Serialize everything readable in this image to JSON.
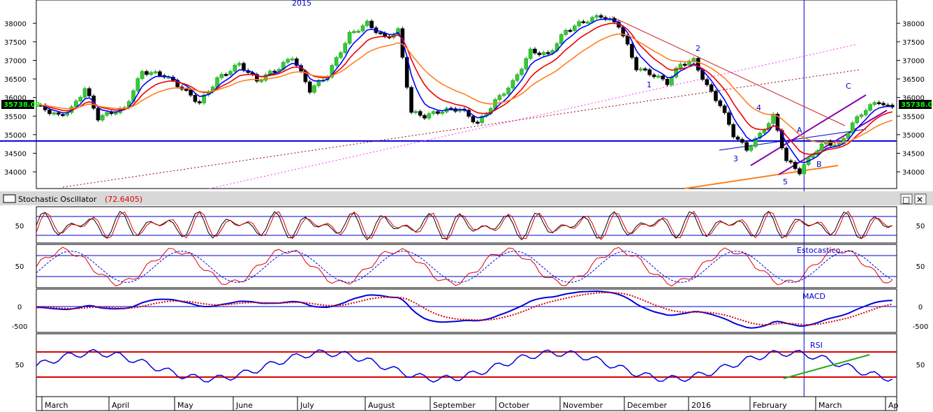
{
  "colors": {
    "price_up": "#33cc33",
    "price_down": "#000000",
    "ema_fast": "#0000ff",
    "ema_mid": "#ee0000",
    "ema_slow": "#ff7f1f",
    "label_blue": "#0000cc",
    "grid": "#0000cc",
    "green_trend": "#22aa22",
    "magenta": "#ff33ff",
    "purple": "#8800aa",
    "dark_red": "#990000",
    "rsi_band": "#dd0000",
    "price_tag_bg": "#000000",
    "price_tag_fg": "#00ff00",
    "panel_bar_bg": "#d8d8d8"
  },
  "top_label": "2015",
  "price_tag": "35738.00",
  "wave_labels": [
    "1",
    "2",
    "3",
    "4",
    "5",
    "A",
    "B",
    "C"
  ],
  "stochastic_panel": {
    "title": "Stochastic Oscillator",
    "value": "(72.6405)",
    "btn_restore": "□",
    "btn_close": "✕"
  },
  "panel_labels": {
    "estocastico": "Estocastico",
    "macd": "MACD",
    "rsi": "RSI"
  },
  "chart_data": [
    {
      "type": "line",
      "name": "price",
      "y_ticks": [
        34000,
        34500,
        35000,
        35500,
        36000,
        36500,
        37000,
        37500,
        38000
      ],
      "y_tick_labels": [
        "34000",
        "34500",
        "35000",
        "35500",
        "36000",
        "36500",
        "37000",
        "37500",
        "38000"
      ],
      "ylim": [
        33550,
        38550
      ],
      "horizontal_line": 34830,
      "x_months": [
        "March",
        "April",
        "May",
        "June",
        "July",
        "August",
        "September",
        "October",
        "November",
        "December",
        "2016",
        "February",
        "March",
        "Ap"
      ],
      "price_path": [
        [
          0,
          35800
        ],
        [
          5,
          35500
        ],
        [
          8,
          35700
        ],
        [
          11,
          36250
        ],
        [
          14,
          35450
        ],
        [
          17,
          35600
        ],
        [
          20,
          35700
        ],
        [
          24,
          36700
        ],
        [
          29,
          36600
        ],
        [
          33,
          36250
        ],
        [
          37,
          35850
        ],
        [
          41,
          36500
        ],
        [
          46,
          36900
        ],
        [
          50,
          36450
        ],
        [
          55,
          36800
        ],
        [
          58,
          37100
        ],
        [
          62,
          36200
        ],
        [
          66,
          36600
        ],
        [
          71,
          37700
        ],
        [
          75,
          38000
        ],
        [
          79,
          37600
        ],
        [
          82,
          37800
        ],
        [
          85,
          35600
        ],
        [
          88,
          35500
        ],
        [
          92,
          35650
        ],
        [
          96,
          35700
        ],
        [
          100,
          35300
        ],
        [
          104,
          35900
        ],
        [
          108,
          36400
        ],
        [
          112,
          37250
        ],
        [
          116,
          37150
        ],
        [
          120,
          37800
        ],
        [
          124,
          38050
        ],
        [
          128,
          38200
        ],
        [
          132,
          37950
        ],
        [
          136,
          36800
        ],
        [
          140,
          36600
        ],
        [
          143,
          36400
        ],
        [
          146,
          36900
        ],
        [
          149,
          37000
        ],
        [
          152,
          36300
        ],
        [
          155,
          35800
        ],
        [
          158,
          35000
        ],
        [
          161,
          34600
        ],
        [
          164,
          35000
        ],
        [
          167,
          35500
        ],
        [
          170,
          34300
        ],
        [
          173,
          34000
        ],
        [
          176,
          34500
        ],
        [
          179,
          34800
        ],
        [
          182,
          34700
        ],
        [
          185,
          35300
        ],
        [
          188,
          35700
        ],
        [
          191,
          35900
        ],
        [
          193,
          35738
        ]
      ]
    },
    {
      "type": "line",
      "name": "stochastic_oscillator",
      "y_tick_labels": [
        "50"
      ],
      "value": 72.6405
    },
    {
      "type": "line",
      "name": "estocastico",
      "y_tick_labels": [
        "50"
      ]
    },
    {
      "type": "line",
      "name": "macd",
      "y_tick_labels": [
        "0",
        "-500"
      ]
    },
    {
      "type": "line",
      "name": "rsi",
      "y_tick_labels": [
        "50"
      ]
    }
  ]
}
